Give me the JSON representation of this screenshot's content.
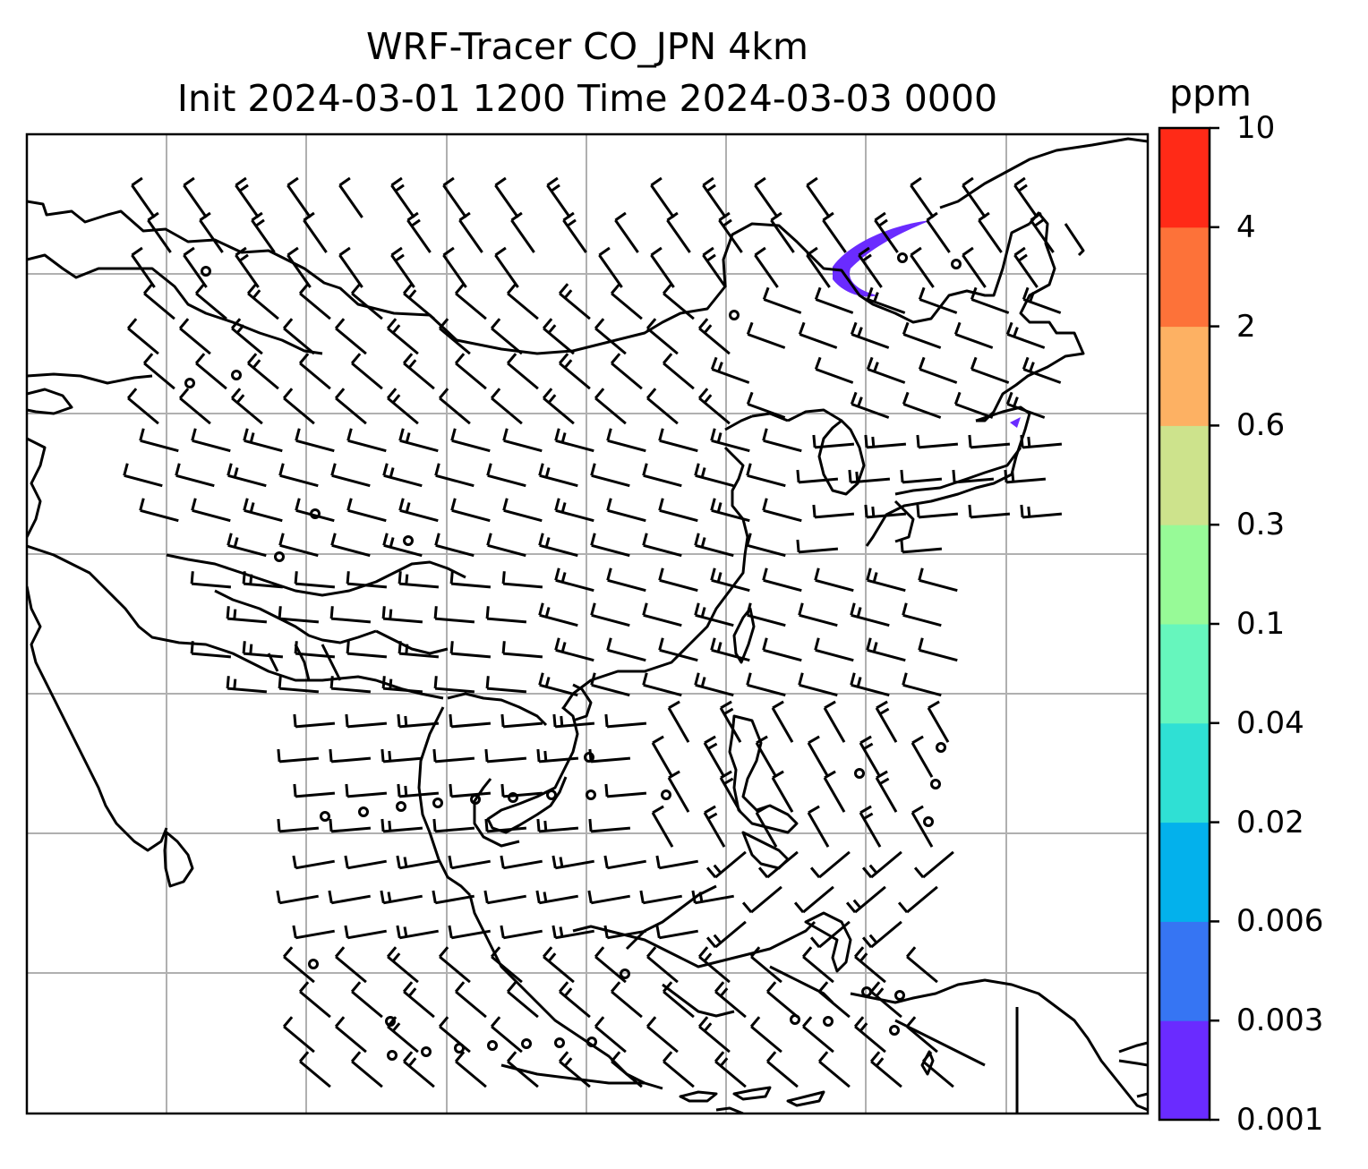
{
  "title": "WRF-Tracer CO_JPN 4km",
  "subtitle": "Init 2024-03-01 1200 Time 2024-03-03 0000",
  "colorbar": {
    "unit": "ppm",
    "levels": [
      "0.001",
      "0.003",
      "0.006",
      "0.02",
      "0.04",
      "0.1",
      "0.3",
      "0.6",
      "2",
      "4",
      "10"
    ],
    "colors": [
      "#6a2bff",
      "#3675f3",
      "#03b1ec",
      "#2fe0d4",
      "#66f6bd",
      "#97fa97",
      "#cde38c",
      "#fdb163",
      "#fd7239",
      "#ff2a17"
    ]
  },
  "plume_color": "#6a2bff",
  "gridline_color": "#b0b0b0",
  "coastline_color": "#000000",
  "barb_color": "#000000"
}
